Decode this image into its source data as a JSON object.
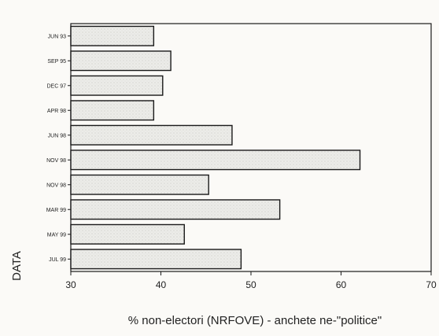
{
  "chart_data": {
    "type": "bar",
    "orientation": "horizontal",
    "categories": [
      "JUN 93",
      "SEP 95",
      "DEC 97",
      "APR 98",
      "JUN 98",
      "NOV 98",
      "NOV 98",
      "MAR 99",
      "MAY 99",
      "JUL 99"
    ],
    "values": [
      39.2,
      41.1,
      40.2,
      39.2,
      47.9,
      62.1,
      45.3,
      53.2,
      42.6,
      48.9
    ],
    "xlabel": "% non-electori (NRFOVE) - anchete ne-\"politice\"",
    "ylabel": "DATA",
    "xlim": [
      30,
      70
    ],
    "xticks": [
      30,
      40,
      50,
      60,
      70
    ],
    "grid": false,
    "bar_fill": "#e9e9e6",
    "bar_stroke": "#1a1a1a"
  }
}
